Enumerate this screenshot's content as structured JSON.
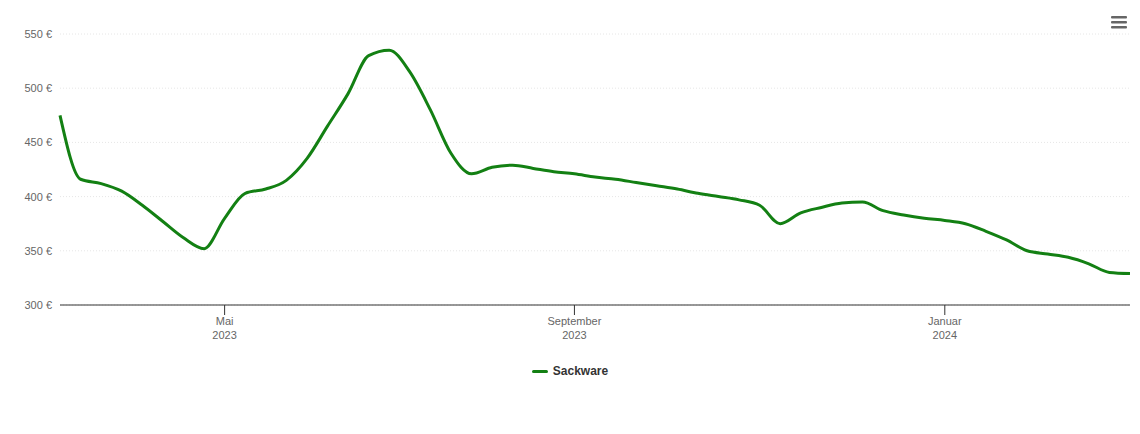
{
  "chart_data": {
    "type": "line",
    "categories": [
      null,
      null,
      null,
      null,
      null,
      null,
      null,
      null,
      "Mai 2023",
      null,
      null,
      null,
      null,
      null,
      null,
      null,
      null,
      null,
      null,
      null,
      null,
      null,
      null,
      null,
      null,
      "September 2023",
      null,
      null,
      null,
      null,
      null,
      null,
      null,
      null,
      null,
      null,
      null,
      null,
      null,
      null,
      null,
      null,
      null,
      "Januar 2024",
      null,
      null,
      null,
      null,
      null,
      null,
      null,
      null,
      null
    ],
    "series": [
      {
        "name": "Sackware",
        "color": "#138013",
        "values": [
          475,
          416,
          412,
          405,
          392,
          377,
          362,
          352,
          380,
          403,
          407,
          415,
          435,
          465,
          495,
          530,
          535,
          515,
          480,
          440,
          421,
          427,
          429,
          426,
          423,
          421,
          418,
          416,
          413,
          410,
          407,
          403,
          400,
          397,
          392,
          375,
          385,
          390,
          394,
          395,
          387,
          383,
          380,
          378,
          375,
          368,
          360,
          350,
          347,
          344,
          338,
          330,
          329
        ]
      }
    ],
    "ylim": [
      300,
      550
    ],
    "yticks": [
      {
        "value": 300,
        "label": "300 €"
      },
      {
        "value": 350,
        "label": "350 €"
      },
      {
        "value": 400,
        "label": "400 €"
      },
      {
        "value": 450,
        "label": "450 €"
      },
      {
        "value": 500,
        "label": "500 €"
      },
      {
        "value": 550,
        "label": "550 €"
      }
    ],
    "grid": true
  }
}
